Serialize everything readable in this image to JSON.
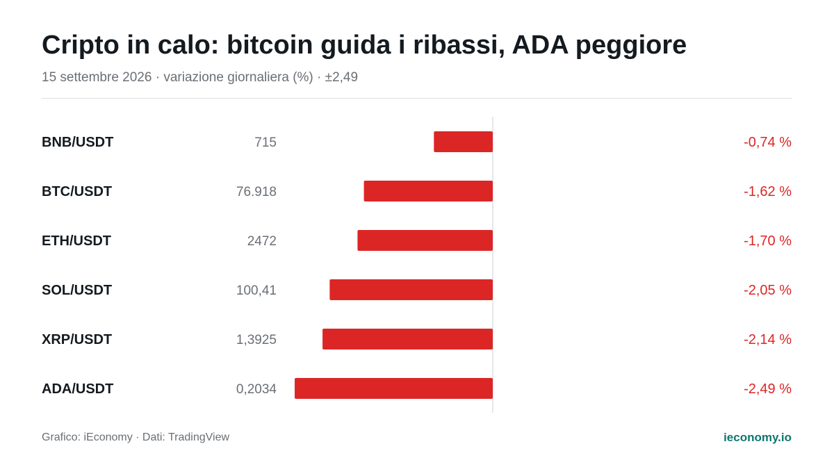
{
  "header": {
    "title": "Cripto in calo: bitcoin guida i ribassi, ADA peggiore",
    "subtitle": "15 settembre 2026 · variazione giornaliera (%) · ±2,49"
  },
  "footer": {
    "credit": "Grafico: iEconomy · Dati: TradingView",
    "site": "ieconomy.io"
  },
  "colors": {
    "negative": "#dc2626",
    "axis": "#dcdfe2",
    "pair_label": "#141a1f",
    "price_label": "#6a6f75",
    "site": "#0f766e"
  },
  "chart_data": {
    "type": "bar",
    "orientation": "horizontal",
    "categories": [
      "BNB/USDT",
      "BTC/USDT",
      "ETH/USDT",
      "SOL/USDT",
      "XRP/USDT",
      "ADA/USDT"
    ],
    "prices": [
      "715",
      "76.918",
      "2472",
      "100,41",
      "1,3925",
      "0,2034"
    ],
    "values": [
      -0.74,
      -1.62,
      -1.7,
      -2.05,
      -2.14,
      -2.49
    ],
    "value_labels": [
      "-0,74 %",
      "-1,62 %",
      "-1,70 %",
      "-2,05 %",
      "-2,14 %",
      "-2,49 %"
    ],
    "xlim": [
      -2.49,
      2.49
    ],
    "grid": false,
    "legend": "none"
  }
}
